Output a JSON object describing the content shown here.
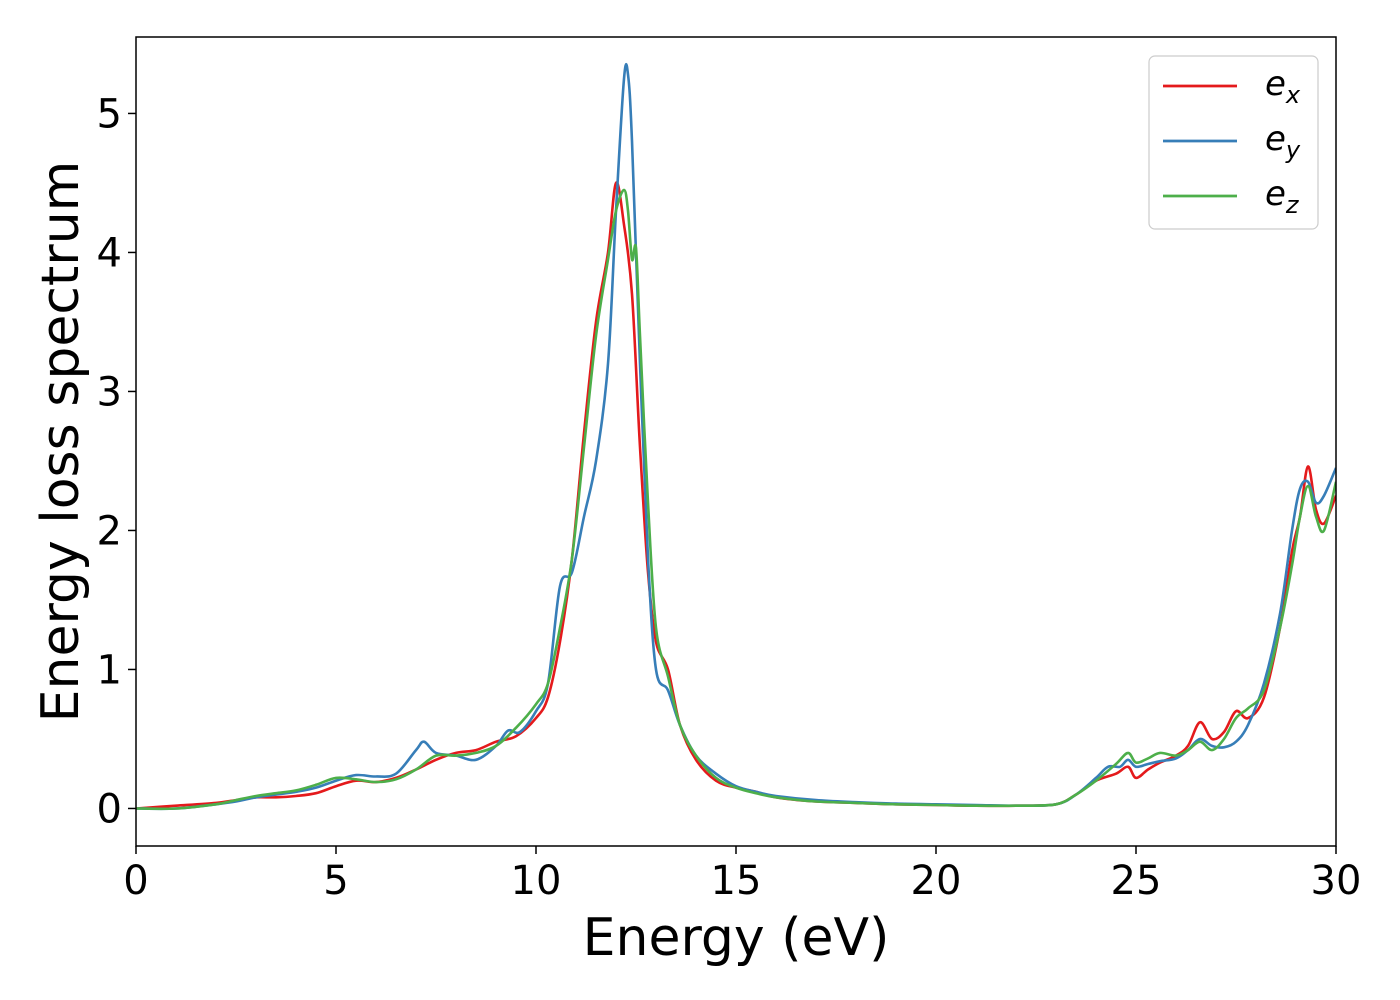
{
  "chart_data": {
    "type": "line",
    "xlabel": "Energy (eV)",
    "ylabel": "Energy loss spectrum",
    "xlim": [
      0,
      30
    ],
    "ylim": [
      -0.27,
      5.55
    ],
    "xticks": [
      0,
      5,
      10,
      15,
      20,
      25,
      30
    ],
    "yticks": [
      0,
      1,
      2,
      3,
      4,
      5
    ],
    "grid": false,
    "legend_position": "top-right",
    "series": [
      {
        "name": "e",
        "subscript": "x",
        "color": "#e41a1c",
        "x": [
          0,
          1,
          2,
          2.5,
          3,
          3.5,
          4,
          4.5,
          5,
          5.5,
          6,
          6.5,
          7,
          7.5,
          8,
          8.5,
          9,
          9.5,
          10,
          10.3,
          10.6,
          10.9,
          11.2,
          11.5,
          11.8,
          12.0,
          12.2,
          12.4,
          12.6,
          12.8,
          13.0,
          13.3,
          13.6,
          14,
          14.5,
          15,
          15.5,
          16,
          17,
          18,
          19,
          20,
          21,
          22,
          23,
          23.5,
          24,
          24.5,
          24.8,
          25.0,
          25.3,
          25.6,
          26,
          26.3,
          26.6,
          26.9,
          27.2,
          27.5,
          27.8,
          28.2,
          28.6,
          28.9,
          29.1,
          29.3,
          29.5,
          29.7,
          30
        ],
        "y": [
          0,
          0.02,
          0.04,
          0.06,
          0.08,
          0.08,
          0.09,
          0.11,
          0.16,
          0.2,
          0.19,
          0.22,
          0.28,
          0.35,
          0.4,
          0.42,
          0.48,
          0.52,
          0.65,
          0.8,
          1.2,
          1.8,
          2.7,
          3.5,
          4.0,
          4.5,
          4.2,
          3.7,
          2.6,
          1.7,
          1.2,
          1.0,
          0.6,
          0.35,
          0.2,
          0.15,
          0.12,
          0.08,
          0.05,
          0.04,
          0.03,
          0.025,
          0.02,
          0.02,
          0.03,
          0.1,
          0.2,
          0.25,
          0.3,
          0.22,
          0.28,
          0.33,
          0.38,
          0.45,
          0.62,
          0.5,
          0.55,
          0.7,
          0.65,
          0.8,
          1.3,
          1.85,
          2.1,
          2.46,
          2.15,
          2.05,
          2.25
        ]
      },
      {
        "name": "e",
        "subscript": "y",
        "color": "#377eb8",
        "x": [
          0,
          1,
          2,
          2.5,
          3,
          3.5,
          4,
          4.5,
          5,
          5.5,
          6,
          6.5,
          7,
          7.2,
          7.5,
          8,
          8.5,
          9,
          9.3,
          9.6,
          10,
          10.3,
          10.6,
          10.9,
          11.2,
          11.5,
          11.8,
          12.0,
          12.2,
          12.3,
          12.4,
          12.6,
          12.8,
          13.0,
          13.3,
          13.6,
          14,
          14.5,
          15,
          15.5,
          16,
          17,
          18,
          19,
          20,
          21,
          22,
          23,
          23.5,
          24,
          24.3,
          24.6,
          24.8,
          25.0,
          25.3,
          25.6,
          26,
          26.3,
          26.6,
          26.9,
          27.2,
          27.5,
          27.8,
          28.2,
          28.6,
          28.9,
          29.1,
          29.3,
          29.5,
          29.7,
          30
        ],
        "y": [
          0,
          0,
          0.03,
          0.05,
          0.08,
          0.1,
          0.12,
          0.15,
          0.2,
          0.24,
          0.23,
          0.25,
          0.42,
          0.48,
          0.4,
          0.38,
          0.35,
          0.45,
          0.56,
          0.55,
          0.7,
          0.9,
          1.6,
          1.7,
          2.1,
          2.5,
          3.2,
          4.3,
          5.25,
          5.28,
          4.8,
          3.2,
          1.8,
          1.0,
          0.85,
          0.6,
          0.38,
          0.25,
          0.16,
          0.12,
          0.09,
          0.06,
          0.045,
          0.035,
          0.03,
          0.025,
          0.02,
          0.03,
          0.1,
          0.22,
          0.3,
          0.3,
          0.35,
          0.3,
          0.32,
          0.34,
          0.36,
          0.42,
          0.5,
          0.45,
          0.44,
          0.48,
          0.6,
          0.9,
          1.4,
          2.0,
          2.3,
          2.35,
          2.2,
          2.25,
          2.45
        ]
      },
      {
        "name": "e",
        "subscript": "z",
        "color": "#4daf4a",
        "x": [
          0,
          1,
          2,
          2.5,
          3,
          3.5,
          4,
          4.5,
          5,
          5.5,
          6,
          6.5,
          7,
          7.5,
          8,
          8.5,
          9,
          9.5,
          10,
          10.3,
          10.6,
          10.9,
          11.2,
          11.5,
          11.8,
          12.0,
          12.2,
          12.3,
          12.4,
          12.5,
          12.6,
          12.8,
          13.0,
          13.3,
          13.6,
          14,
          14.5,
          15,
          15.5,
          16,
          17,
          18,
          19,
          20,
          21,
          22,
          23,
          23.5,
          24,
          24.5,
          24.8,
          25.0,
          25.3,
          25.6,
          26,
          26.3,
          26.6,
          26.9,
          27.2,
          27.5,
          27.8,
          28.2,
          28.6,
          28.9,
          29.1,
          29.3,
          29.5,
          29.7,
          30
        ],
        "y": [
          0,
          0,
          0.03,
          0.06,
          0.09,
          0.11,
          0.13,
          0.17,
          0.22,
          0.21,
          0.19,
          0.21,
          0.28,
          0.38,
          0.38,
          0.4,
          0.45,
          0.58,
          0.75,
          0.9,
          1.3,
          1.8,
          2.6,
          3.4,
          3.95,
          4.3,
          4.45,
          4.3,
          3.95,
          4.03,
          3.4,
          2.2,
          1.3,
          0.95,
          0.6,
          0.38,
          0.22,
          0.15,
          0.11,
          0.08,
          0.05,
          0.04,
          0.03,
          0.025,
          0.02,
          0.02,
          0.03,
          0.1,
          0.2,
          0.32,
          0.4,
          0.33,
          0.36,
          0.4,
          0.38,
          0.42,
          0.48,
          0.42,
          0.5,
          0.65,
          0.72,
          0.85,
          1.3,
          1.75,
          2.1,
          2.32,
          2.1,
          2.0,
          2.35
        ]
      }
    ]
  }
}
